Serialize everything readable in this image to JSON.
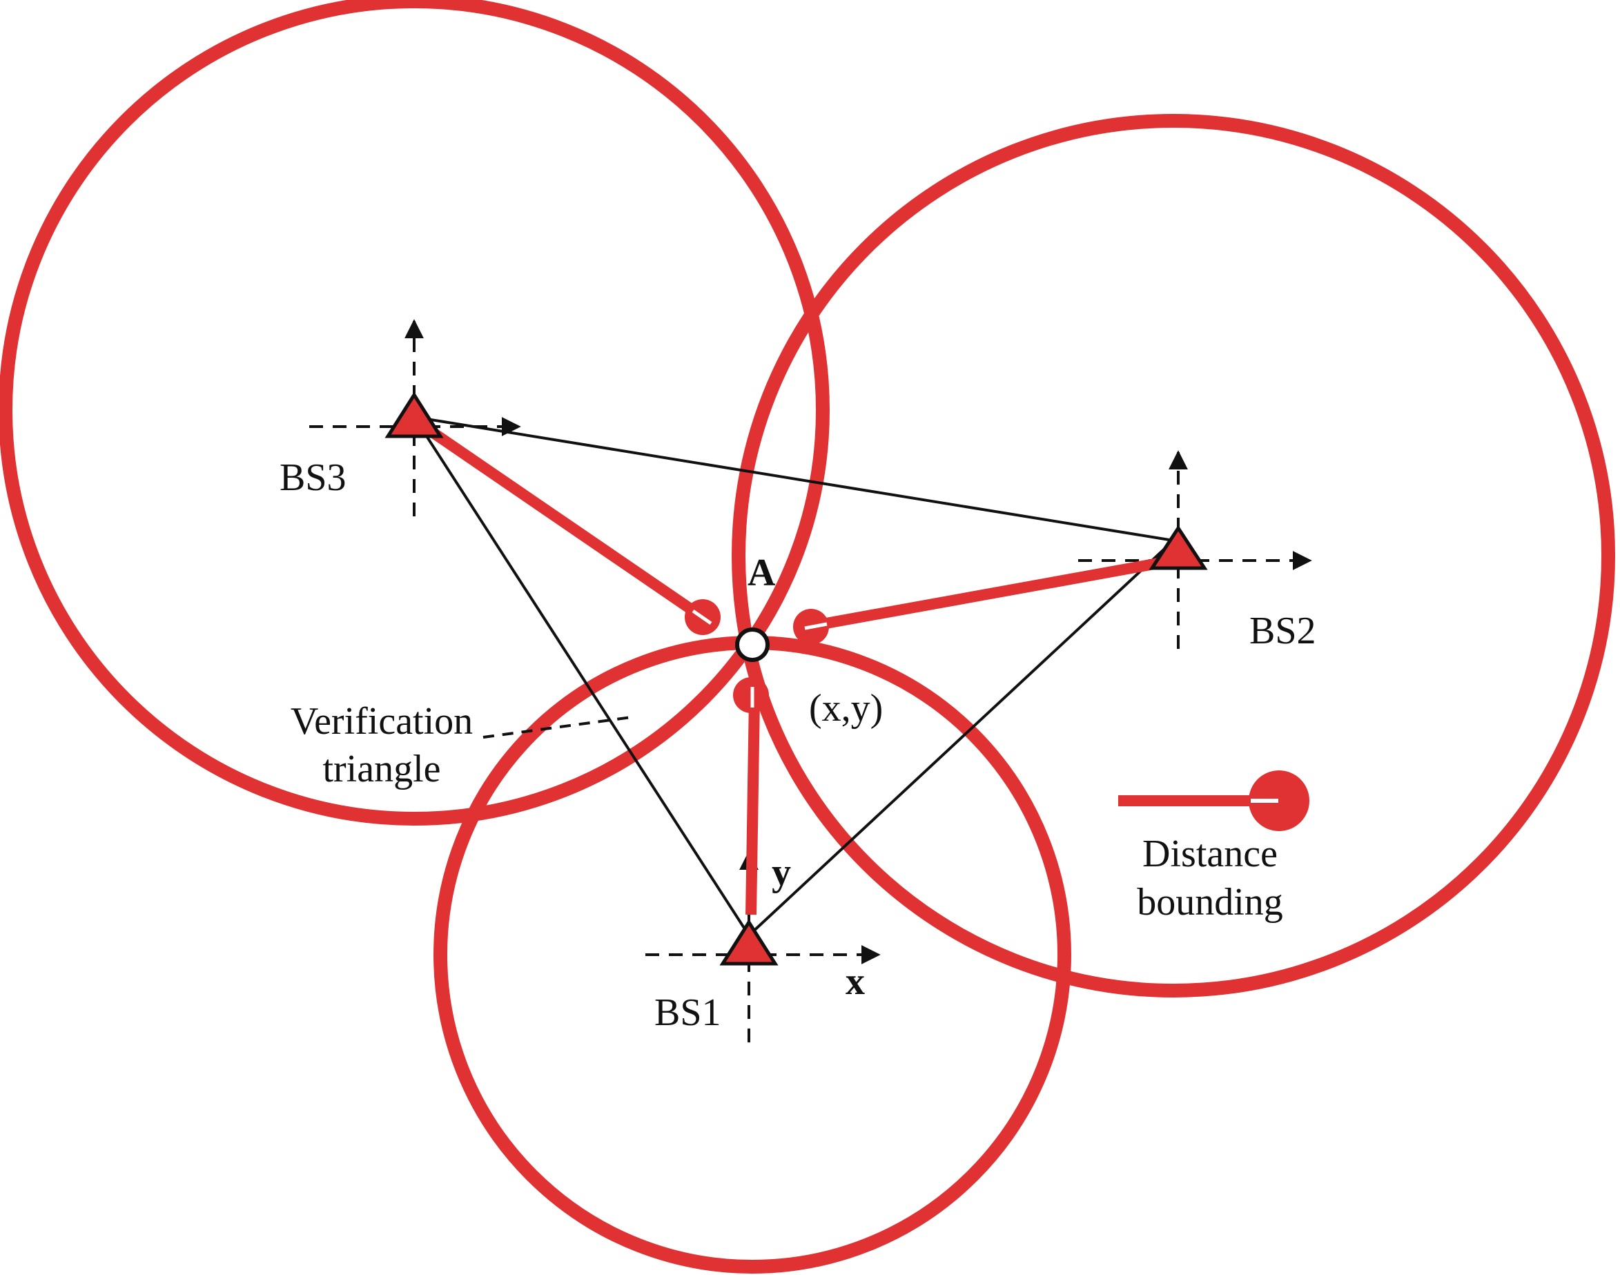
{
  "colors": {
    "accent": "#e03232",
    "ink": "#111111",
    "background": "#ffffff"
  },
  "stations": {
    "bs1": {
      "label": "BS1"
    },
    "bs2": {
      "label": "BS2"
    },
    "bs3": {
      "label": "BS3"
    }
  },
  "axes": {
    "x_label": "x",
    "y_label": "y"
  },
  "node": {
    "label": "A",
    "coords": "(x,y)"
  },
  "annotation": {
    "verification_line1": "Verification",
    "verification_line2": "triangle"
  },
  "legend": {
    "line1": "Distance",
    "line2": "bounding"
  }
}
